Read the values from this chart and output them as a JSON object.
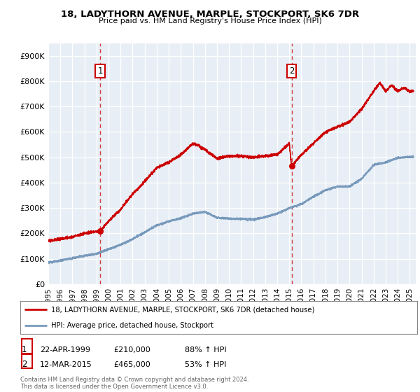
{
  "title1": "18, LADYTHORN AVENUE, MARPLE, STOCKPORT, SK6 7DR",
  "title2": "Price paid vs. HM Land Registry's House Price Index (HPI)",
  "background_color": "#e8eef5",
  "legend_label_red": "18, LADYTHORN AVENUE, MARPLE, STOCKPORT, SK6 7DR (detached house)",
  "legend_label_blue": "HPI: Average price, detached house, Stockport",
  "annotation1_date": "22-APR-1999",
  "annotation1_price": "£210,000",
  "annotation1_hpi": "88% ↑ HPI",
  "annotation2_date": "12-MAR-2015",
  "annotation2_price": "£465,000",
  "annotation2_hpi": "53% ↑ HPI",
  "footnote": "Contains HM Land Registry data © Crown copyright and database right 2024.\nThis data is licensed under the Open Government Licence v3.0.",
  "xmin": 1995.0,
  "xmax": 2025.5,
  "ymin": 0,
  "ymax": 950000,
  "yticks": [
    0,
    100000,
    200000,
    300000,
    400000,
    500000,
    600000,
    700000,
    800000,
    900000
  ],
  "ytick_labels": [
    "£0",
    "£100K",
    "£200K",
    "£300K",
    "£400K",
    "£500K",
    "£600K",
    "£700K",
    "£800K",
    "£900K"
  ],
  "purchase1_x": 1999.31,
  "purchase1_y": 210000,
  "purchase2_x": 2015.19,
  "purchase2_y": 465000,
  "red_color": "#cc0000",
  "blue_color": "#7799bb",
  "dashed_color": "#cc0000",
  "xtick_years": [
    1995,
    1996,
    1997,
    1998,
    1999,
    2000,
    2001,
    2002,
    2003,
    2004,
    2005,
    2006,
    2007,
    2008,
    2009,
    2010,
    2011,
    2012,
    2013,
    2014,
    2015,
    2016,
    2017,
    2018,
    2019,
    2020,
    2021,
    2022,
    2023,
    2024,
    2025
  ],
  "blue_keypoints_x": [
    1995,
    1996,
    1997,
    1998,
    1999,
    2000,
    2001,
    2002,
    2003,
    2004,
    2005,
    2006,
    2007,
    2008,
    2009,
    2010,
    2011,
    2012,
    2013,
    2014,
    2015,
    2016,
    2017,
    2018,
    2019,
    2020,
    2021,
    2022,
    2023,
    2024,
    2025
  ],
  "blue_keypoints_y": [
    85000,
    93000,
    103000,
    112000,
    120000,
    138000,
    155000,
    178000,
    205000,
    232000,
    248000,
    260000,
    278000,
    285000,
    262000,
    258000,
    258000,
    255000,
    265000,
    278000,
    300000,
    315000,
    345000,
    370000,
    385000,
    385000,
    415000,
    470000,
    480000,
    498000,
    502000
  ],
  "red_keypoints_x": [
    1995,
    1996,
    1997,
    1998,
    1999,
    1999.31,
    2000,
    2001,
    2002,
    2003,
    2004,
    2005,
    2006,
    2007,
    2007.5,
    2008,
    2009,
    2010,
    2011,
    2012,
    2013,
    2014,
    2015,
    2015.19,
    2016,
    2017,
    2018,
    2019,
    2020,
    2021,
    2022,
    2022.5,
    2023,
    2023.5,
    2024,
    2024.5,
    2025
  ],
  "red_keypoints_y": [
    170000,
    178000,
    186000,
    200000,
    208000,
    210000,
    248000,
    295000,
    355000,
    405000,
    458000,
    480000,
    510000,
    555000,
    545000,
    530000,
    495000,
    505000,
    505000,
    500000,
    505000,
    510000,
    555000,
    465000,
    510000,
    555000,
    600000,
    620000,
    640000,
    690000,
    760000,
    795000,
    760000,
    785000,
    760000,
    775000,
    760000
  ]
}
